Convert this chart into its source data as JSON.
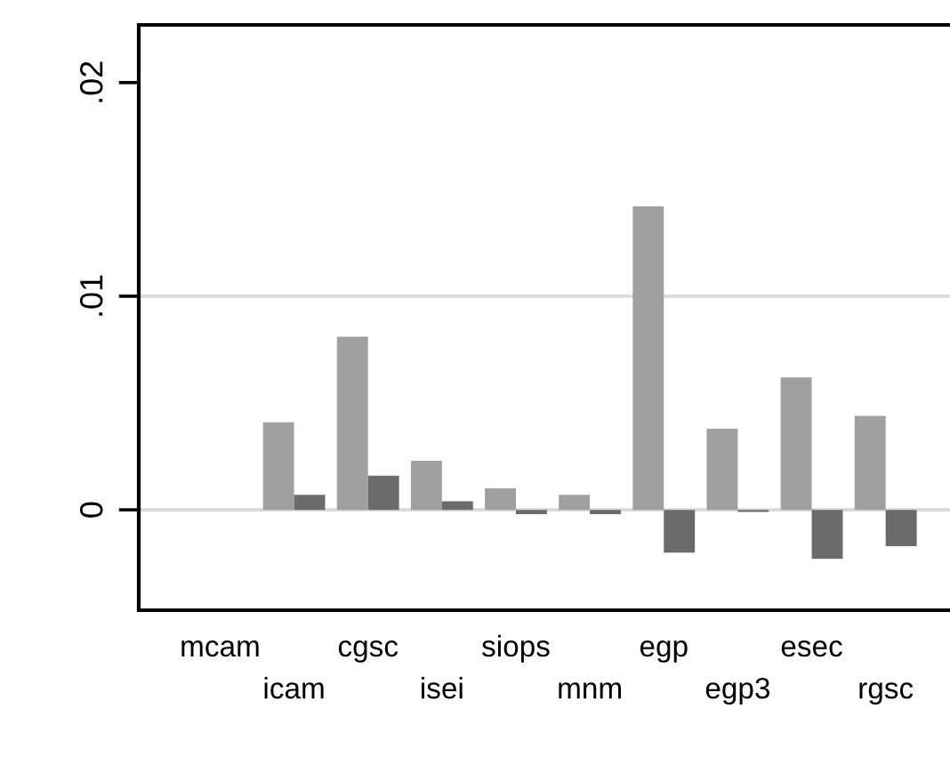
{
  "chart_data": {
    "type": "bar",
    "categories": [
      "mcam",
      "icam",
      "cgsc",
      "isei",
      "siops",
      "mnm",
      "egp",
      "egp3",
      "esec",
      "rgsc"
    ],
    "series": [
      {
        "color": "#a0a0a0",
        "values": [
          null,
          0.0041,
          0.0081,
          0.0023,
          0.001,
          0.0007,
          0.0142,
          0.0038,
          0.0062,
          0.0044
        ]
      },
      {
        "color": "#6b6b6b",
        "values": [
          null,
          0.0007,
          0.0016,
          0.0004,
          -0.0002,
          -0.0002,
          -0.002,
          -0.0001,
          -0.0023,
          -0.0017
        ]
      }
    ],
    "ylim": [
      -0.0047,
      0.0227
    ],
    "yticks": [
      0,
      {
        "value": 0.01,
        "label": ".01"
      },
      {
        "value": 0.02,
        "label": ".02"
      }
    ],
    "ref_lines": [
      {
        "axis": "y",
        "value": 0,
        "color": "#d9d9d9"
      },
      {
        "axis": "y",
        "value": 0.01,
        "color": "#d9d9d9"
      }
    ]
  }
}
